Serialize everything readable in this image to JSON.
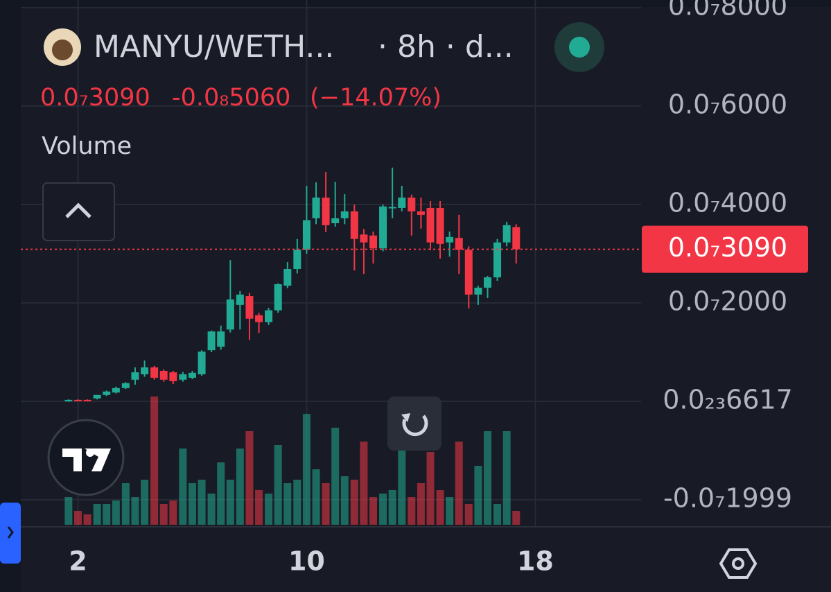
{
  "header": {
    "symbol": "MANYU/WETH...",
    "interval": "· 8h · d...",
    "change": "-0.0₈5060",
    "change_pct": "(−14.07%)",
    "indicator": "Volume"
  },
  "chart_data": {
    "type": "candlestick",
    "x": [
      1.67,
      2,
      2.33,
      2.67,
      3,
      3.33,
      3.67,
      4,
      4.33,
      4.67,
      5,
      5.33,
      5.67,
      6,
      6.33,
      6.67,
      7,
      7.33,
      7.67,
      8,
      8.33,
      8.67,
      9,
      9.33,
      9.67,
      10,
      10.33,
      10.67,
      11,
      11.33,
      11.67,
      12,
      12.33,
      12.67,
      13,
      13.33,
      13.67,
      14,
      14.33,
      14.67,
      15,
      15.33,
      15.67,
      16,
      16.33,
      16.67,
      17,
      17.33
    ],
    "open": [
      0,
      3e-10,
      3e-10,
      6e-10,
      1.3e-09,
      1.8e-09,
      2.7e-09,
      4.4e-09,
      5.5e-09,
      6.9e-09,
      6.2e-09,
      5.9e-09,
      4.4e-09,
      4.8e-09,
      5.5e-09,
      1.04e-08,
      1.11e-08,
      1.46e-08,
      1.96e-08,
      2.14e-08,
      1.75e-08,
      1.61e-08,
      1.85e-08,
      2.35e-08,
      2.69e-08,
      3.08e-08,
      3.72e-08,
      4.14e-08,
      3.62e-08,
      3.72e-08,
      3.86e-08,
      3.39e-08,
      3.37e-08,
      3.11e-08,
      3.93e-08,
      3.93e-08,
      4.14e-08,
      3.86e-08,
      3.93e-08,
      3.93e-08,
      3.23e-08,
      3.32e-08,
      3.08e-08,
      2.17e-08,
      2.31e-08,
      2.52e-08,
      3.23e-08,
      3.54e-08
    ],
    "high": [
      4e-10,
      4e-10,
      4e-10,
      1.3e-09,
      2.2e-09,
      3e-09,
      3.9e-09,
      6.9e-09,
      8.3e-09,
      7.2e-09,
      6.5e-09,
      6.2e-09,
      6e-09,
      6.2e-09,
      1.04e-08,
      1.44e-08,
      1.54e-08,
      2.87e-08,
      2.24e-08,
      2.2e-08,
      1.8e-08,
      1.9e-08,
      2.4e-08,
      2.83e-08,
      3.3e-08,
      4.38e-08,
      4.45e-08,
      4.66e-08,
      4.46e-08,
      4.21e-08,
      4e-08,
      3.5e-08,
      3.45e-08,
      4e-08,
      4.75e-08,
      4.38e-08,
      4.2e-08,
      4.14e-08,
      4.07e-08,
      4.07e-08,
      3.45e-08,
      3.79e-08,
      3.15e-08,
      2.35e-08,
      2.55e-08,
      3.3e-08,
      3.65e-08,
      3.6e-08
    ],
    "low": [
      -1e-10,
      1e-10,
      1e-10,
      4e-10,
      1.1e-09,
      1.6e-09,
      2.5e-09,
      3.4e-09,
      5e-09,
      4.4e-09,
      4e-09,
      3.5e-09,
      4e-09,
      4.5e-09,
      5.2e-09,
      1e-08,
      1.05e-08,
      1.4e-08,
      1.46e-08,
      1.25e-08,
      1.39e-08,
      1.55e-08,
      1.8e-08,
      2.3e-08,
      2.6e-08,
      3e-08,
      3.6e-08,
      3.44e-08,
      3.55e-08,
      3.6e-08,
      2.66e-08,
      2.59e-08,
      2.8e-08,
      3.05e-08,
      3.72e-08,
      3.86e-08,
      3.37e-08,
      3.51e-08,
      3.08e-08,
      2.9e-08,
      2.94e-08,
      2.59e-08,
      1.89e-08,
      1.96e-08,
      2.1e-08,
      2.45e-08,
      3.15e-08,
      2.8e-08
    ],
    "close": [
      3e-10,
      2e-10,
      2e-10,
      1.3e-09,
      2e-09,
      2.7e-09,
      3.7e-09,
      5.9e-09,
      6.9e-09,
      4.8e-09,
      4.4e-09,
      4.1e-09,
      5.5e-09,
      5.8e-09,
      1.01e-08,
      1.42e-08,
      1.42e-08,
      2.07e-08,
      2.17e-08,
      1.68e-08,
      1.61e-08,
      1.85e-08,
      2.38e-08,
      2.69e-08,
      3.08e-08,
      3.68e-08,
      4.14e-08,
      3.58e-08,
      3.72e-08,
      3.86e-08,
      3.3e-08,
      3.23e-08,
      3.11e-08,
      3.96e-08,
      3.95e-08,
      4.14e-08,
      3.86e-08,
      3.79e-08,
      3.23e-08,
      3.2e-08,
      3.34e-08,
      3.08e-08,
      2.17e-08,
      2.31e-08,
      2.52e-08,
      3.23e-08,
      3.58e-08,
      3.09e-08
    ],
    "volume": [
      40,
      20,
      15,
      30,
      30,
      35,
      60,
      40,
      65,
      185,
      30,
      35,
      110,
      60,
      65,
      45,
      90,
      65,
      110,
      135,
      50,
      45,
      115,
      60,
      65,
      160,
      80,
      60,
      140,
      70,
      65,
      120,
      40,
      45,
      50,
      135,
      40,
      60,
      105,
      50,
      40,
      120,
      30,
      85,
      135,
      30,
      135,
      20
    ],
    "up_color": "#22ab94",
    "down_color": "#f23645",
    "last_price": {
      "value": 3.09e-08,
      "label": "0.0₇3090"
    },
    "xlim": [
      0,
      21.7
    ],
    "xticks": [
      2,
      10,
      18
    ],
    "ylim": [
      -2.507e-08,
      8.155e-08
    ],
    "yticks": [
      {
        "value": 8e-08,
        "label": "0.0₇8000"
      },
      {
        "value": 6e-08,
        "label": "0.0₇6000"
      },
      {
        "value": 4e-08,
        "label": "0.0₇4000"
      },
      {
        "value": 2e-08,
        "label": "0.0₇2000"
      },
      {
        "value": 6.617e-24,
        "label": "0.0₂₃6617"
      },
      {
        "value": -1.999e-08,
        "label": "-0.0₇1999"
      }
    ],
    "y2lim": [
      0,
      190
    ],
    "grid": true
  }
}
